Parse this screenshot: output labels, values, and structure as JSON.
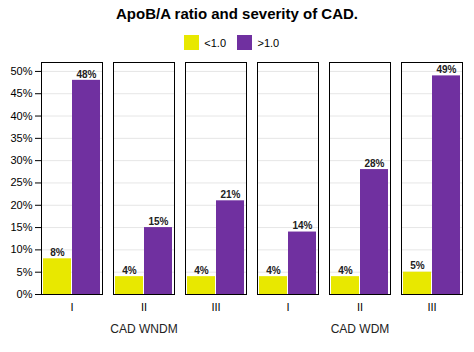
{
  "chart_data": {
    "type": "bar",
    "title": "ApoB/A ratio and severity of CAD.",
    "categories": [
      "I",
      "II",
      "III",
      "I",
      "II",
      "III"
    ],
    "series": [
      {
        "name": "<1.0",
        "color": "#e8e800",
        "values": [
          8,
          4,
          4,
          4,
          4,
          5
        ],
        "value_labels": [
          "8%",
          "4%",
          "4%",
          "4%",
          "4%",
          "5%"
        ]
      },
      {
        "name": ">1.0",
        "color": "#7030a0",
        "values": [
          48,
          15,
          21,
          14,
          28,
          49
        ],
        "value_labels": [
          "48%",
          "15%",
          "21%",
          "14%",
          "28%",
          "49%"
        ]
      }
    ],
    "ylim": [
      0,
      52
    ],
    "yticks": [
      {
        "value": 0,
        "label": "0%"
      },
      {
        "value": 5,
        "label": "5%"
      },
      {
        "value": 10,
        "label": "10%"
      },
      {
        "value": 15,
        "label": "15%"
      },
      {
        "value": 20,
        "label": "20%"
      },
      {
        "value": 25,
        "label": "25%"
      },
      {
        "value": 30,
        "label": "30%"
      },
      {
        "value": 35,
        "label": "35%"
      },
      {
        "value": 40,
        "label": "40%"
      },
      {
        "value": 45,
        "label": "45%"
      },
      {
        "value": 50,
        "label": "50%"
      }
    ],
    "grid": true,
    "legend": "top",
    "data_labels": true,
    "annotations": [
      "CAD WNDM",
      "CAD WDM"
    ]
  }
}
